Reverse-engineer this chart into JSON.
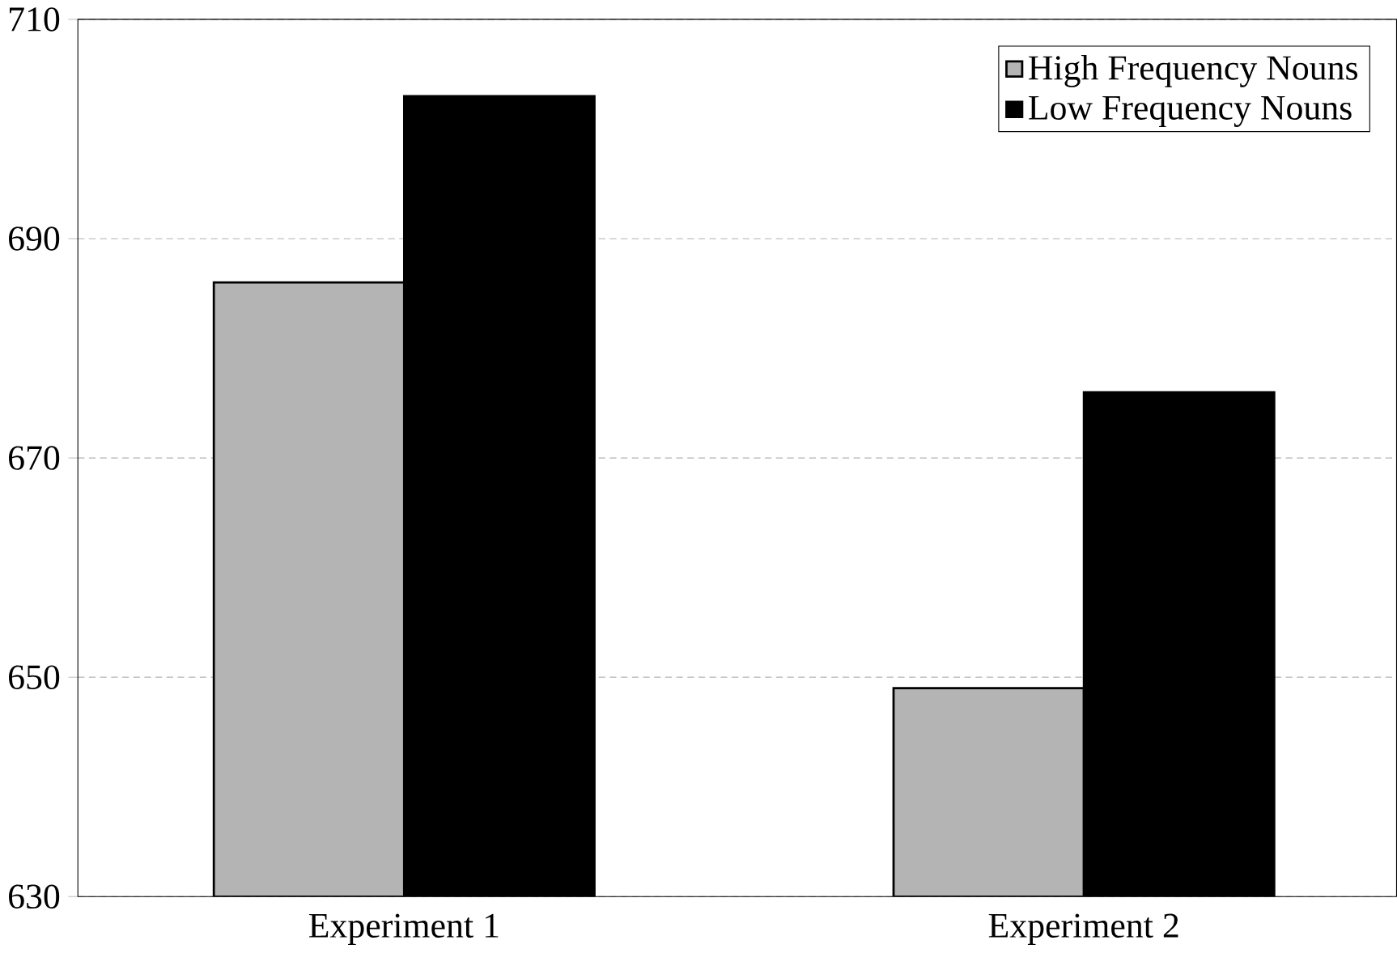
{
  "chart_data": {
    "type": "bar",
    "categories": [
      "Experiment 1",
      "Experiment 2"
    ],
    "series": [
      {
        "name": "High Frequency Nouns",
        "color": "#b4b4b4",
        "values": [
          686,
          649
        ]
      },
      {
        "name": "Low  Frequency Nouns",
        "color": "#000000",
        "values": [
          703,
          676
        ]
      }
    ],
    "ylim": [
      630,
      710
    ],
    "yticks": [
      630,
      650,
      670,
      690,
      710
    ],
    "grid": "y",
    "legend": "top right"
  }
}
